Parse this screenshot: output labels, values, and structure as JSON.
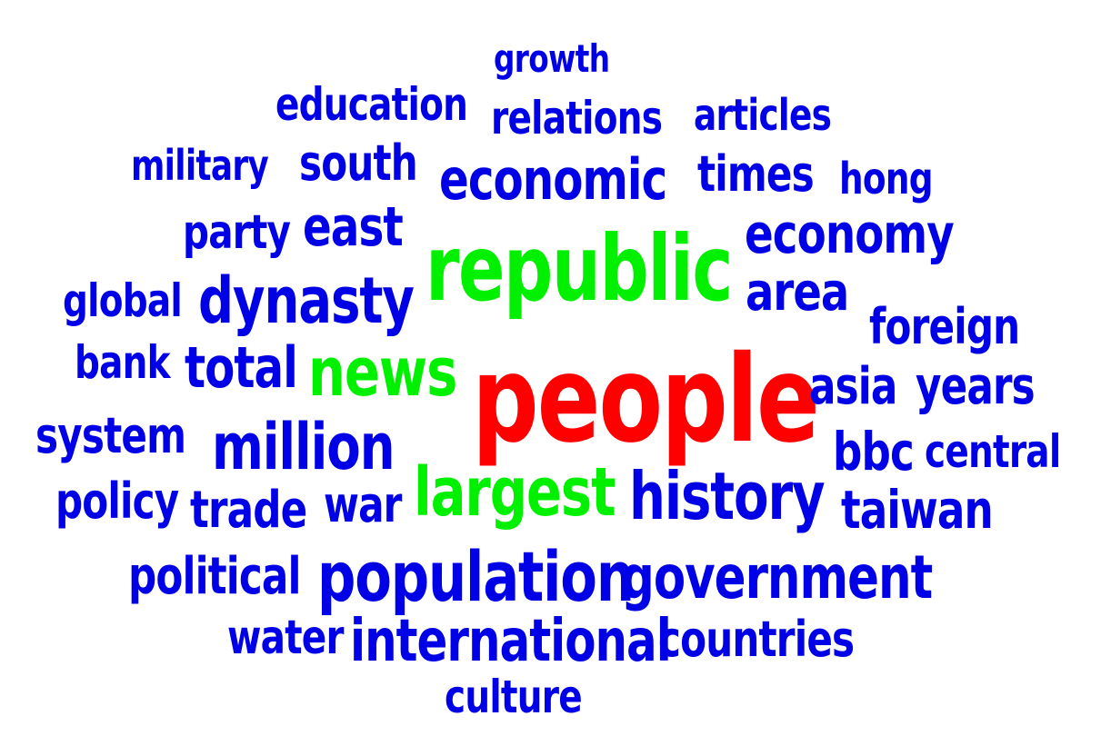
{
  "colors": {
    "background": "#ffffff",
    "primary": "#0000e6",
    "highlight_green": "#00f000",
    "highlight_red": "#ff0000"
  },
  "words": {
    "growth": "growth",
    "education": "education",
    "relations": "relations",
    "articles": "articles",
    "military": "military",
    "south": "south",
    "economic": "economic",
    "times": "times",
    "hong": "hong",
    "party": "party",
    "east": "east",
    "economy": "economy",
    "republic": "republic",
    "area": "area",
    "global": "global",
    "dynasty": "dynasty",
    "foreign": "foreign",
    "bank": "bank",
    "total": "total",
    "news": "news",
    "people": "people",
    "asia": "asia",
    "years": "years",
    "system": "system",
    "million": "million",
    "bbc": "bbc",
    "central": "central",
    "largest": "largest",
    "history": "history",
    "policy": "policy",
    "trade": "trade",
    "war": "war",
    "taiwan": "taiwan",
    "political": "political",
    "population": "population",
    "government": "government",
    "water": "water",
    "international": "international",
    "countries": "countries",
    "culture": "culture"
  }
}
